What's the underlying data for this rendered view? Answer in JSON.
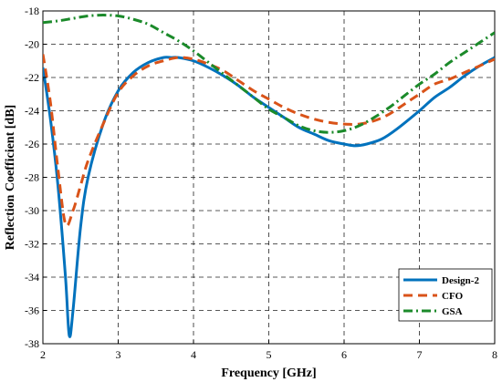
{
  "chart_data": {
    "type": "line",
    "title": "",
    "xlabel": "Frequency [GHz]",
    "ylabel": "Reflection Coefficient [dB]",
    "xlim": [
      2,
      8
    ],
    "ylim": [
      -38,
      -18
    ],
    "xticks": [
      2,
      3,
      4,
      5,
      6,
      7,
      8
    ],
    "yticks": [
      -38,
      -36,
      -34,
      -32,
      -30,
      -28,
      -26,
      -24,
      -22,
      -20,
      -18
    ],
    "grid": true,
    "legend_position": "bottom-right",
    "series": [
      {
        "name": "Design-2",
        "color": "#0072BD",
        "dash": "solid",
        "x": [
          2.0,
          2.1,
          2.2,
          2.3,
          2.35,
          2.4,
          2.5,
          2.6,
          2.8,
          3.0,
          3.2,
          3.4,
          3.6,
          3.7,
          3.8,
          4.0,
          4.2,
          4.4,
          4.6,
          4.8,
          5.0,
          5.2,
          5.4,
          5.6,
          5.8,
          6.0,
          6.15,
          6.3,
          6.5,
          6.7,
          7.0,
          7.2,
          7.4,
          7.6,
          7.8,
          8.0
        ],
        "y": [
          -21.4,
          -24.5,
          -28.5,
          -34.0,
          -37.5,
          -36.0,
          -31.0,
          -28.0,
          -24.8,
          -22.8,
          -21.7,
          -21.1,
          -20.8,
          -20.8,
          -20.8,
          -21.0,
          -21.4,
          -21.9,
          -22.5,
          -23.2,
          -23.8,
          -24.4,
          -25.0,
          -25.4,
          -25.8,
          -26.0,
          -26.1,
          -26.0,
          -25.7,
          -25.1,
          -24.0,
          -23.2,
          -22.6,
          -21.9,
          -21.3,
          -20.8
        ]
      },
      {
        "name": "CFO",
        "color": "#D95319",
        "dash": "dashed",
        "x": [
          2.0,
          2.1,
          2.2,
          2.3,
          2.4,
          2.5,
          2.6,
          2.8,
          3.0,
          3.2,
          3.4,
          3.6,
          3.8,
          4.0,
          4.2,
          4.4,
          4.6,
          4.8,
          5.0,
          5.2,
          5.4,
          5.6,
          5.8,
          6.0,
          6.2,
          6.4,
          6.6,
          6.8,
          7.0,
          7.2,
          7.4,
          7.6,
          7.8,
          8.0
        ],
        "y": [
          -20.6,
          -23.5,
          -27.5,
          -30.8,
          -30.0,
          -28.5,
          -27.0,
          -24.8,
          -22.9,
          -21.9,
          -21.3,
          -21.0,
          -20.8,
          -20.9,
          -21.2,
          -21.6,
          -22.2,
          -22.8,
          -23.3,
          -23.8,
          -24.2,
          -24.5,
          -24.7,
          -24.8,
          -24.8,
          -24.6,
          -24.2,
          -23.6,
          -23.0,
          -22.4,
          -22.1,
          -21.7,
          -21.3,
          -20.9
        ]
      },
      {
        "name": "GSA",
        "color": "#1B8A2A",
        "dash": "dashdot",
        "x": [
          2.0,
          2.2,
          2.4,
          2.6,
          2.8,
          3.0,
          3.2,
          3.4,
          3.6,
          3.8,
          4.0,
          4.2,
          4.4,
          4.6,
          4.8,
          5.0,
          5.2,
          5.4,
          5.6,
          5.8,
          6.0,
          6.2,
          6.4,
          6.6,
          6.8,
          7.0,
          7.2,
          7.4,
          7.6,
          7.8,
          8.0
        ],
        "y": [
          -18.7,
          -18.6,
          -18.45,
          -18.3,
          -18.25,
          -18.3,
          -18.5,
          -18.8,
          -19.3,
          -19.8,
          -20.4,
          -21.1,
          -21.8,
          -22.5,
          -23.2,
          -23.9,
          -24.4,
          -24.9,
          -25.2,
          -25.3,
          -25.2,
          -24.9,
          -24.4,
          -23.8,
          -23.1,
          -22.4,
          -21.8,
          -21.1,
          -20.5,
          -19.9,
          -19.3
        ]
      }
    ]
  }
}
